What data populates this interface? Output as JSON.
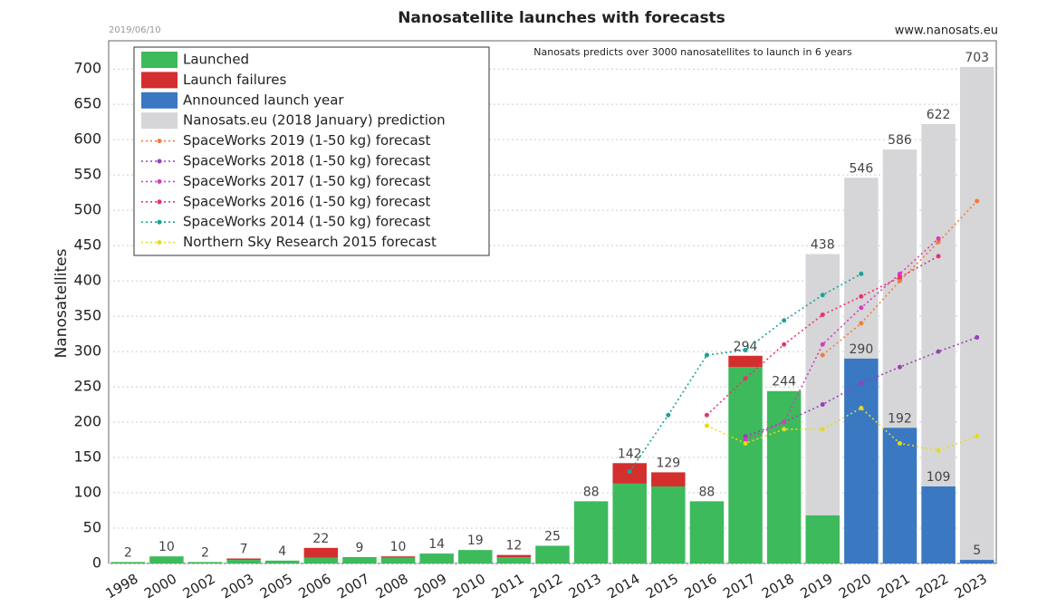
{
  "chart_data": {
    "type": "bar",
    "title": "Nanosatellite launches with forecasts",
    "date": "2019/06/10",
    "source": "www.nanosats.eu",
    "annotation": "Nanosats predicts over 3000 nanosatellites to launch in 6 years",
    "y_label": "Nanosatellites",
    "categories": [
      "1998",
      "2000",
      "2002",
      "2003",
      "2005",
      "2006",
      "2007",
      "2008",
      "2009",
      "2010",
      "2011",
      "2012",
      "2013",
      "2014",
      "2015",
      "2016",
      "2017",
      "2018",
      "2019",
      "2020",
      "2021",
      "2022",
      "2023"
    ],
    "totals": [
      2,
      10,
      2,
      7,
      4,
      22,
      9,
      10,
      14,
      19,
      12,
      25,
      88,
      142,
      129,
      88,
      294,
      244,
      null,
      null,
      null,
      null,
      null
    ],
    "series": [
      {
        "name": "Launched",
        "type": "bar",
        "color": "#3dba5c",
        "values": [
          2,
          10,
          2,
          5,
          4,
          8,
          9,
          8,
          14,
          19,
          9,
          25,
          88,
          113,
          109,
          88,
          278,
          244,
          68,
          null,
          null,
          null,
          null
        ]
      },
      {
        "name": "Launch failures",
        "type": "bar",
        "color": "#d32f2f",
        "values": [
          0,
          0,
          0,
          2,
          0,
          14,
          0,
          2,
          0,
          0,
          3,
          0,
          0,
          29,
          20,
          0,
          16,
          0,
          null,
          null,
          null,
          null,
          null
        ]
      },
      {
        "name": "Announced launch year",
        "type": "bar",
        "color": "#3a78c2",
        "values": [
          null,
          null,
          null,
          null,
          null,
          null,
          null,
          null,
          null,
          null,
          null,
          null,
          null,
          null,
          null,
          null,
          null,
          null,
          null,
          290,
          192,
          109,
          5
        ]
      },
      {
        "name": "Nanosats.eu (2018 January) prediction",
        "type": "bar",
        "color": "#d6d6d8",
        "values": [
          null,
          null,
          null,
          null,
          null,
          null,
          null,
          null,
          null,
          null,
          null,
          null,
          null,
          null,
          null,
          null,
          null,
          null,
          438,
          546,
          586,
          622,
          703
        ]
      },
      {
        "name": "SpaceWorks 2019 (1-50 kg) forecast",
        "type": "line",
        "color": "#f47b3c",
        "values": [
          null,
          null,
          null,
          null,
          null,
          null,
          null,
          null,
          null,
          null,
          null,
          null,
          null,
          null,
          null,
          null,
          null,
          null,
          295,
          340,
          400,
          455,
          513
        ]
      },
      {
        "name": "SpaceWorks 2018 (1-50 kg) forecast",
        "type": "line",
        "color": "#9b3fb5",
        "values": [
          null,
          null,
          null,
          null,
          null,
          null,
          null,
          null,
          null,
          null,
          null,
          null,
          null,
          null,
          null,
          null,
          180,
          200,
          225,
          255,
          278,
          300,
          320
        ]
      },
      {
        "name": "SpaceWorks 2017 (1-50 kg) forecast",
        "type": "line",
        "color": "#d63cbd",
        "values": [
          null,
          null,
          null,
          null,
          null,
          null,
          null,
          null,
          null,
          null,
          null,
          null,
          null,
          null,
          null,
          null,
          175,
          200,
          310,
          362,
          410,
          460,
          null
        ]
      },
      {
        "name": "SpaceWorks 2016 (1-50 kg) forecast",
        "type": "line",
        "color": "#e8336e",
        "values": [
          null,
          null,
          null,
          null,
          null,
          null,
          null,
          null,
          null,
          null,
          null,
          null,
          null,
          null,
          null,
          210,
          262,
          310,
          352,
          378,
          405,
          435,
          null
        ]
      },
      {
        "name": "SpaceWorks 2014 (1-50 kg) forecast",
        "type": "line",
        "color": "#1aa39a",
        "values": [
          null,
          null,
          null,
          null,
          null,
          null,
          null,
          null,
          null,
          null,
          null,
          null,
          null,
          130,
          210,
          295,
          302,
          344,
          380,
          410,
          null,
          null,
          null
        ]
      },
      {
        "name": "Northern Sky Research 2015 forecast",
        "type": "line",
        "color": "#e3dc1e",
        "values": [
          null,
          null,
          null,
          null,
          null,
          null,
          null,
          null,
          null,
          null,
          null,
          null,
          null,
          null,
          null,
          195,
          170,
          190,
          190,
          220,
          170,
          160,
          180
        ]
      }
    ],
    "ylim": [
      0,
      740
    ],
    "yticks": [
      0,
      50,
      100,
      150,
      200,
      250,
      300,
      350,
      400,
      450,
      500,
      550,
      600,
      650,
      700
    ],
    "grid": true
  }
}
